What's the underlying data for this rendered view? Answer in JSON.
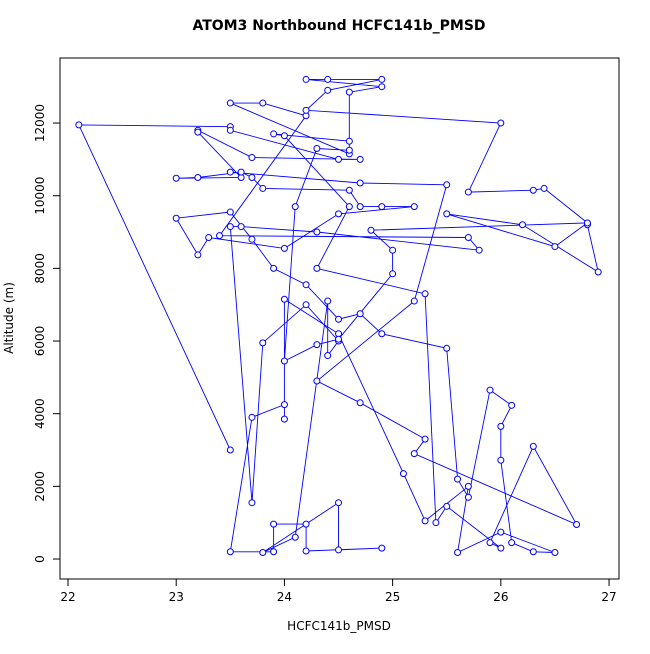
{
  "chart_data": {
    "type": "line",
    "title": "ATOM3 Northbound HCFC141b_PMSD",
    "x_label": "HCFC141b_PMSD",
    "y_label": "Altitude (m)",
    "color": "#0000ff",
    "xlim": [
      21.926,
      27.092
    ],
    "ylim": [
      -550,
      13790
    ],
    "xticks": [
      22,
      23,
      24,
      25,
      26,
      27
    ],
    "yticks": [
      0,
      2000,
      4000,
      6000,
      8000,
      10000,
      12000
    ],
    "x": [
      23.5,
      22.1,
      23.5,
      23.5,
      24.5,
      24.7,
      23.7,
      23.2,
      23.2,
      23.6,
      23.0,
      23.2,
      23.6,
      23.7,
      23.8,
      24.6,
      24.7,
      24.9,
      25.2,
      24.5,
      24.0,
      23.3,
      23.2,
      23.0,
      23.5,
      23.7,
      23.9,
      24.2,
      24.5,
      24.7,
      24.9,
      25.5,
      25.6,
      25.7,
      25.9,
      26.1,
      26.0,
      26.0,
      26.1,
      26.3,
      26.5,
      26.0,
      25.6,
      25.7,
      25.3,
      25.1,
      24.5,
      24.0,
      24.0,
      24.0,
      23.7,
      23.5,
      23.9,
      23.9,
      24.2,
      24.2,
      24.9,
      24.5,
      24.5,
      23.8,
      24.1,
      24.4,
      24.4,
      24.5,
      24.2,
      23.8,
      23.7,
      23.5,
      23.6,
      24.3,
      25.8,
      25.7,
      23.4,
      24.2,
      23.8,
      23.5,
      24.6,
      24.6,
      24.9,
      24.2,
      24.4,
      24.9,
      24.4,
      24.2,
      26.0,
      25.7,
      26.3,
      26.4,
      26.8,
      26.8,
      26.9,
      26.2,
      25.5,
      26.5,
      26.8,
      24.8,
      25.0,
      25.0,
      24.5,
      24.3,
      24.0,
      24.1,
      24.3,
      24.6,
      24.6,
      23.9,
      24.0,
      24.6,
      24.3,
      25.3,
      25.4,
      25.5,
      26.0,
      25.9,
      26.3,
      26.7,
      25.2,
      25.3,
      24.7,
      24.3,
      25.2,
      25.5,
      24.7,
      23.5
    ],
    "values": [
      3000,
      11950,
      11900,
      11800,
      11000,
      11000,
      11050,
      11800,
      11750,
      10500,
      10480,
      10500,
      10650,
      10500,
      10200,
      10150,
      9700,
      9700,
      9700,
      9500,
      8550,
      8850,
      8370,
      9380,
      9550,
      8800,
      8000,
      7550,
      6600,
      6750,
      6200,
      5800,
      2200,
      1700,
      4650,
      4230,
      3650,
      2720,
      450,
      200,
      180,
      740,
      180,
      2000,
      1050,
      2350,
      6200,
      7150,
      3850,
      4250,
      3900,
      200,
      200,
      960,
      960,
      220,
      300,
      250,
      1550,
      180,
      600,
      7100,
      5600,
      6000,
      7000,
      5950,
      1550,
      9150,
      9150,
      9000,
      8500,
      8850,
      8900,
      12200,
      12550,
      12550,
      11150,
      12850,
      13000,
      13200,
      13200,
      13200,
      12900,
      12350,
      12000,
      10100,
      10150,
      10200,
      9250,
      9200,
      7900,
      9200,
      9500,
      8600,
      9250,
      9050,
      8500,
      7850,
      6050,
      5900,
      5450,
      9700,
      11300,
      11250,
      11500,
      11700,
      11650,
      9700,
      8000,
      7300,
      1000,
      1450,
      300,
      450,
      3100,
      950,
      2900,
      3300,
      4300,
      4900,
      7100,
      10300,
      10350,
      10650
    ]
  }
}
